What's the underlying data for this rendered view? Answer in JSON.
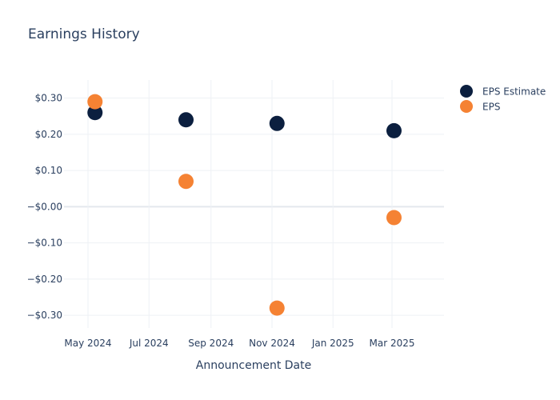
{
  "chart_data": {
    "type": "scatter",
    "title": "Earnings History",
    "xlabel": "Announcement Date",
    "ylabel": "",
    "x_ticks": [
      "May 2024",
      "Jul 2024",
      "Sep 2024",
      "Nov 2024",
      "Jan 2025",
      "Mar 2025"
    ],
    "y_ticks": [
      "$0.30",
      "$0.20",
      "$0.10",
      "−$0.00",
      "−$0.10",
      "−$0.20",
      "−$0.30"
    ],
    "ylim": [
      -0.335,
      0.35
    ],
    "xlim": [
      "2024-04-07",
      "2025-04-22"
    ],
    "grid": true,
    "legend_position": "top-right",
    "series": [
      {
        "name": "EPS Estimate",
        "color": "#0b1f3f",
        "points": [
          {
            "x": "2024-05-08",
            "y": 0.26
          },
          {
            "x": "2024-08-07",
            "y": 0.24
          },
          {
            "x": "2024-11-06",
            "y": 0.23
          },
          {
            "x": "2025-03-03",
            "y": 0.21
          }
        ]
      },
      {
        "name": "EPS",
        "color": "#f58233",
        "points": [
          {
            "x": "2024-05-08",
            "y": 0.29
          },
          {
            "x": "2024-08-07",
            "y": 0.07
          },
          {
            "x": "2024-11-06",
            "y": -0.28
          },
          {
            "x": "2025-03-03",
            "y": -0.03
          }
        ]
      }
    ]
  }
}
